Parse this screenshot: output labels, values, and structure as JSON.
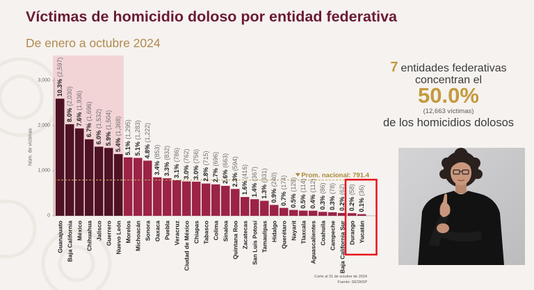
{
  "theme": {
    "background": "#f6f2ef",
    "title": "#6a1b36",
    "subtitle": "#b08a4f",
    "gold": "#c39a3e",
    "text": "#3b3b3b"
  },
  "chart_data": {
    "type": "bar",
    "title": "Víctimas de homicidio doloso por entidad federativa",
    "subtitle": "De enero a octubre 2024",
    "xlabel": "",
    "ylabel": "Núm. de víctimas",
    "ylim": [
      0,
      3000
    ],
    "yticks": [
      0,
      1000,
      2000,
      3000
    ],
    "grid": false,
    "legend": "none",
    "categories": [
      "Guanajuato",
      "Baja California",
      "México",
      "Chihuahua",
      "Jalisco",
      "Guerrero",
      "Nuevo León",
      "Morelos",
      "Michoacán",
      "Sonora",
      "Oaxaca",
      "Puebla",
      "Veracruz",
      "Ciudad de México",
      "Chiapas",
      "Tabasco",
      "Colima",
      "Sinaloa",
      "Quintana Roo",
      "Zacatecas",
      "San Luis Potosí",
      "Tamaulipas",
      "Hidalgo",
      "Querétaro",
      "Nayarit",
      "Tlaxcala",
      "Aguascalientes",
      "Coahuila",
      "Campeche",
      "Baja California Sur",
      "Durango",
      "Yucatán"
    ],
    "values": [
      2597,
      2030,
      1936,
      1696,
      1532,
      1504,
      1368,
      1295,
      1283,
      1222,
      853,
      832,
      786,
      762,
      756,
      715,
      696,
      663,
      594,
      416,
      367,
      331,
      240,
      174,
      129,
      114,
      112,
      86,
      78,
      62,
      58,
      36
    ],
    "percentages": [
      10.3,
      8.0,
      7.6,
      6.7,
      6.0,
      5.9,
      5.4,
      5.1,
      5.1,
      4.8,
      3.4,
      3.3,
      3.1,
      3.0,
      3.0,
      2.8,
      2.7,
      2.6,
      2.3,
      1.6,
      1.4,
      1.3,
      0.9,
      0.7,
      0.5,
      0.5,
      0.4,
      0.3,
      0.3,
      0.2,
      0.2,
      0.1
    ],
    "highlighted_top": 7,
    "boxed_categories": [
      "Durango",
      "Yucatán"
    ],
    "reference_line": {
      "label": "Prom. nacional: 791.4",
      "value": 791.4
    },
    "colors": {
      "highlight_bar": "#4e1225",
      "bar": "#9b2346",
      "highlight_region": "#f3d4d6",
      "reference_line": "#c2ab62",
      "reference_label": "#a8893a",
      "callout_box": "#e3141b",
      "category_label": "#1f1f1f",
      "value_pct": "#222222",
      "value_count": "#6e6e6e",
      "axis": "#a0a0a0",
      "tick_label": "#666666"
    }
  },
  "summary": {
    "count": "7",
    "line1": "entidades federativas",
    "line2": "concentran el",
    "share": "50.0%",
    "victims": "(12,663 víctimas)",
    "line3": "de los homicidios dolosos"
  },
  "footer": {
    "cutoff": "Corte al 31 de octubre de 2024",
    "source": "Fuente: SESNSP"
  },
  "interpreter": {
    "icon": "sign-language-interpreter"
  }
}
